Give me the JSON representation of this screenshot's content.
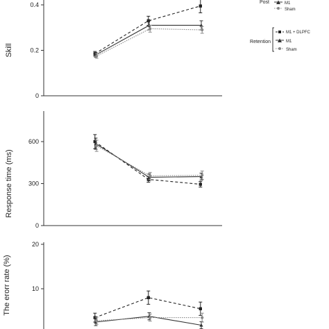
{
  "chart_data": [
    {
      "type": "line",
      "ylabel": "Skill",
      "ylim": [
        0,
        0.4
      ],
      "yticks": [
        "0",
        "0.2",
        "0.4"
      ],
      "x_index": [
        0,
        1,
        2
      ],
      "series": [
        {
          "group": "Post",
          "values": [
            0.185,
            0.33,
            0.395
          ],
          "err": [
            0.01,
            0.02,
            0.03
          ],
          "style": "dashed",
          "marker": "square",
          "color": "#222222"
        },
        {
          "group": "Post",
          "name": "M1",
          "values": [
            0.18,
            0.31,
            0.31
          ],
          "err": [
            0.01,
            0.02,
            0.02
          ],
          "style": "solid",
          "marker": "triangle",
          "color": "#333333"
        },
        {
          "group": "Post",
          "name": "Sham",
          "values": [
            0.175,
            0.295,
            0.29
          ],
          "err": [
            0.01,
            0.015,
            0.015
          ],
          "style": "dotted",
          "marker": "circle",
          "color": "#888888"
        }
      ]
    },
    {
      "type": "line",
      "ylabel": "Response time (ms)",
      "ylim": [
        0,
        600
      ],
      "yticks": [
        "0",
        "300",
        "600"
      ],
      "x_index": [
        0,
        1,
        2
      ],
      "series": [
        {
          "group": "Retention",
          "name": "M1 + DLPFC",
          "values": [
            600,
            330,
            295
          ],
          "err": [
            50,
            20,
            20
          ],
          "style": "dashed",
          "marker": "square",
          "color": "#222222"
        },
        {
          "group": "Retention",
          "name": "M1",
          "values": [
            585,
            345,
            350
          ],
          "err": [
            40,
            25,
            25
          ],
          "style": "solid",
          "marker": "triangle",
          "color": "#333333"
        },
        {
          "group": "Retention",
          "name": "Sham",
          "values": [
            570,
            355,
            360
          ],
          "err": [
            40,
            25,
            30
          ],
          "style": "dotted",
          "marker": "circle",
          "color": "#888888"
        }
      ]
    },
    {
      "type": "line",
      "ylabel": "The erorr rate (%)",
      "ylim": [
        0,
        20
      ],
      "yticks": [
        "10",
        "20"
      ],
      "x_index": [
        0,
        1,
        2
      ],
      "series": [
        {
          "name": "M1 + DLPFC",
          "values": [
            3.5,
            8,
            5.5
          ],
          "err": [
            1,
            1.5,
            1.5
          ],
          "style": "dashed",
          "marker": "square",
          "color": "#222222"
        },
        {
          "name": "M1",
          "values": [
            2.5,
            3.8,
            1.8
          ],
          "err": [
            0.8,
            0.8,
            0.8
          ],
          "style": "solid",
          "marker": "triangle",
          "color": "#333333"
        },
        {
          "name": "Sham",
          "values": [
            2.8,
            3.5,
            3.5
          ],
          "err": [
            0.8,
            0.8,
            1
          ],
          "style": "dotted",
          "marker": "circle",
          "color": "#888888"
        }
      ]
    }
  ],
  "legend": {
    "post": {
      "label": "Post",
      "items": [
        "M1",
        "Sham"
      ]
    },
    "retention": {
      "label": "Retention",
      "items": [
        "M1 + DLPFC",
        "M1",
        "Sham"
      ]
    }
  }
}
